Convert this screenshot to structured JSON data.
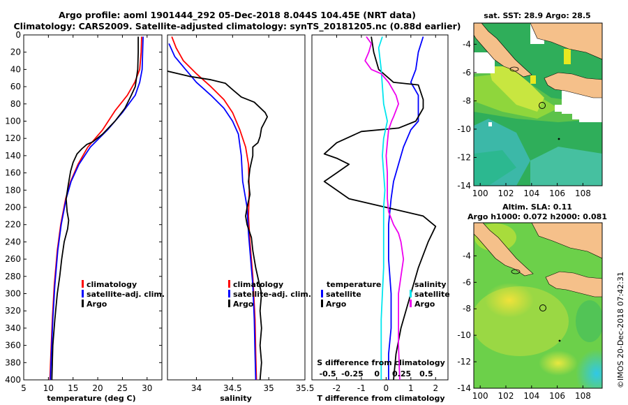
{
  "header": {
    "line1": "Argo profile: aoml 1901444_292 05-Dec-2018 8.044S 104.45E (NRT data)",
    "line2": "Climatology: CARS2009. Satellite-adjusted climatology: synTS_20181205.nc (0.88d earlier)"
  },
  "watermark": "©IMOS 20-Dec-2018 07:42:31",
  "colors": {
    "climatology": "#ff0000",
    "satellite": "#0000ff",
    "argo": "#000000",
    "sat_salinity": "#00e5ee",
    "argo_salinity": "#ee00ee",
    "land": "#f5c08a"
  },
  "chart_data": [
    {
      "type": "line",
      "id": "temperature",
      "xlabel": "temperature (deg C)",
      "ylabel": "",
      "xlim": [
        5,
        33
      ],
      "ylim": [
        400,
        0
      ],
      "xticks": [
        5,
        10,
        15,
        20,
        25,
        30
      ],
      "yticks": [
        0,
        20,
        40,
        60,
        80,
        100,
        120,
        140,
        160,
        180,
        200,
        220,
        240,
        260,
        280,
        300,
        320,
        340,
        360,
        380,
        400
      ],
      "legend": [
        "climatology",
        "satellite-adj. clim.",
        "Argo"
      ],
      "series": [
        {
          "name": "climatology",
          "color": "#ff0000",
          "points": [
            [
              28.9,
              2
            ],
            [
              28.8,
              20
            ],
            [
              28.5,
              40
            ],
            [
              27.5,
              55
            ],
            [
              26,
              70
            ],
            [
              23.5,
              88
            ],
            [
              21,
              110
            ],
            [
              18,
              130
            ],
            [
              16,
              150
            ],
            [
              14.5,
              170
            ],
            [
              13.5,
              190
            ],
            [
              12.5,
              220
            ],
            [
              11.8,
              250
            ],
            [
              11.2,
              290
            ],
            [
              10.8,
              330
            ],
            [
              10.5,
              370
            ],
            [
              10.3,
              400
            ]
          ]
        },
        {
          "name": "satellite-adj. clim.",
          "color": "#0000ff",
          "points": [
            [
              29.2,
              2
            ],
            [
              29.1,
              20
            ],
            [
              29,
              40
            ],
            [
              28.5,
              55
            ],
            [
              27.6,
              70
            ],
            [
              25,
              90
            ],
            [
              22,
              110
            ],
            [
              18.5,
              130
            ],
            [
              16.2,
              150
            ],
            [
              14.6,
              170
            ],
            [
              13.6,
              190
            ],
            [
              12.6,
              220
            ],
            [
              11.9,
              250
            ],
            [
              11.3,
              290
            ],
            [
              10.9,
              330
            ],
            [
              10.6,
              370
            ],
            [
              10.4,
              400
            ]
          ]
        },
        {
          "name": "Argo",
          "color": "#000000",
          "points": [
            [
              28.2,
              2
            ],
            [
              28.2,
              20
            ],
            [
              28.1,
              40
            ],
            [
              27.6,
              60
            ],
            [
              26.8,
              70
            ],
            [
              25.5,
              85
            ],
            [
              23.5,
              100
            ],
            [
              21,
              115
            ],
            [
              19,
              124
            ],
            [
              17.8,
              127
            ],
            [
              16.8,
              132
            ],
            [
              15.8,
              138
            ],
            [
              15,
              148
            ],
            [
              14.5,
              158
            ],
            [
              14,
              175
            ],
            [
              13.6,
              190
            ],
            [
              13.8,
              205
            ],
            [
              14.1,
              215
            ],
            [
              13.9,
              225
            ],
            [
              13.2,
              240
            ],
            [
              12.7,
              260
            ],
            [
              12.3,
              280
            ],
            [
              11.8,
              300
            ],
            [
              11.3,
              330
            ],
            [
              10.9,
              360
            ],
            [
              10.7,
              400
            ]
          ]
        }
      ]
    },
    {
      "type": "line",
      "id": "salinity",
      "xlabel": "salinity",
      "xlim": [
        33.6,
        35.5
      ],
      "ylim": [
        400,
        0
      ],
      "xticks": [
        34,
        34.5,
        35
      ],
      "xticklabels": [
        "34",
        "34.5",
        "35"
      ],
      "extra_ticklabel": "35.5",
      "legend": [
        "climatology",
        "satellite-adj. clim.",
        "Argo"
      ],
      "series": [
        {
          "name": "climatology",
          "color": "#ff0000",
          "points": [
            [
              33.66,
              2
            ],
            [
              33.72,
              15
            ],
            [
              33.82,
              30
            ],
            [
              34,
              45
            ],
            [
              34.2,
              60
            ],
            [
              34.38,
              75
            ],
            [
              34.5,
              90
            ],
            [
              34.6,
              110
            ],
            [
              34.68,
              130
            ],
            [
              34.72,
              150
            ],
            [
              34.73,
              180
            ],
            [
              34.72,
              210
            ],
            [
              34.74,
              240
            ],
            [
              34.78,
              280
            ],
            [
              34.81,
              330
            ],
            [
              34.82,
              370
            ],
            [
              34.83,
              400
            ]
          ]
        },
        {
          "name": "satellite-adj. clim.",
          "color": "#0000ff",
          "points": [
            [
              33.62,
              10
            ],
            [
              33.7,
              25
            ],
            [
              33.85,
              40
            ],
            [
              34,
              55
            ],
            [
              34.2,
              70
            ],
            [
              34.38,
              85
            ],
            [
              34.5,
              100
            ],
            [
              34.58,
              115
            ],
            [
              34.62,
              140
            ],
            [
              34.64,
              170
            ],
            [
              34.7,
              200
            ],
            [
              34.72,
              230
            ],
            [
              34.75,
              260
            ],
            [
              34.78,
              290
            ],
            [
              34.8,
              330
            ],
            [
              34.81,
              370
            ],
            [
              34.82,
              400
            ]
          ]
        },
        {
          "name": "Argo",
          "color": "#000000",
          "points": [
            [
              33.6,
              42
            ],
            [
              33.9,
              48
            ],
            [
              34.2,
              52
            ],
            [
              34.4,
              56
            ],
            [
              34.48,
              62
            ],
            [
              34.62,
              72
            ],
            [
              34.8,
              78
            ],
            [
              34.95,
              90
            ],
            [
              34.98,
              95
            ],
            [
              34.95,
              100
            ],
            [
              34.9,
              108
            ],
            [
              34.88,
              118
            ],
            [
              34.85,
              125
            ],
            [
              34.78,
              130
            ],
            [
              34.78,
              140
            ],
            [
              34.74,
              155
            ],
            [
              34.72,
              170
            ],
            [
              34.74,
              185
            ],
            [
              34.7,
              200
            ],
            [
              34.68,
              210
            ],
            [
              34.7,
              220
            ],
            [
              34.76,
              235
            ],
            [
              34.78,
              250
            ],
            [
              34.82,
              270
            ],
            [
              34.86,
              285
            ],
            [
              34.9,
              300
            ],
            [
              34.88,
              320
            ],
            [
              34.9,
              340
            ],
            [
              34.88,
              360
            ],
            [
              34.9,
              380
            ],
            [
              34.88,
              400
            ]
          ]
        }
      ]
    },
    {
      "type": "line",
      "id": "difference",
      "xlabel": "T difference from climatology",
      "xlabel_top": "S difference from climatology",
      "xlim": [
        -3,
        2.5
      ],
      "ylim": [
        400,
        0
      ],
      "xticks": [
        -2,
        -1,
        0,
        1,
        2
      ],
      "top_xticks": [
        -0.5,
        -0.25,
        0,
        0.25,
        0.5
      ],
      "top_xticklabels": [
        "-0.5",
        "-0.25",
        "0",
        "0.25",
        "0.5"
      ],
      "legend_left_title": "temperature",
      "legend_right_title": "salinity",
      "legend_left": [
        "satellite",
        "Argo"
      ],
      "legend_right": [
        "satellite",
        "Argo"
      ],
      "series": [
        {
          "name": "T satellite",
          "color": "#0000ff",
          "points": [
            [
              1.5,
              2
            ],
            [
              1.3,
              20
            ],
            [
              1.2,
              40
            ],
            [
              1.0,
              55
            ],
            [
              1.3,
              70
            ],
            [
              1.3,
              85
            ],
            [
              1.3,
              100
            ],
            [
              1.0,
              110
            ],
            [
              0.7,
              130
            ],
            [
              0.5,
              150
            ],
            [
              0.3,
              170
            ],
            [
              0.2,
              190
            ],
            [
              0.1,
              220
            ],
            [
              0.1,
              260
            ],
            [
              0.2,
              300
            ],
            [
              0.2,
              340
            ],
            [
              0.1,
              370
            ],
            [
              0.1,
              400
            ]
          ]
        },
        {
          "name": "T Argo",
          "color": "#000000",
          "points": [
            [
              -0.6,
              2
            ],
            [
              -0.5,
              20
            ],
            [
              -0.3,
              40
            ],
            [
              0.3,
              55
            ],
            [
              1.3,
              58
            ],
            [
              1.5,
              75
            ],
            [
              1.5,
              85
            ],
            [
              1.2,
              100
            ],
            [
              0.5,
              108
            ],
            [
              -1,
              112
            ],
            [
              -2,
              125
            ],
            [
              -2.5,
              138
            ],
            [
              -2,
              143
            ],
            [
              -1.5,
              150
            ],
            [
              -2,
              160
            ],
            [
              -2.5,
              170
            ],
            [
              -2,
              180
            ],
            [
              -1.5,
              190
            ],
            [
              0,
              200
            ],
            [
              1.5,
              210
            ],
            [
              2,
              222
            ],
            [
              1.7,
              240
            ],
            [
              1.3,
              270
            ],
            [
              1.0,
              300
            ],
            [
              0.6,
              340
            ],
            [
              0.4,
              370
            ],
            [
              0.3,
              400
            ]
          ]
        },
        {
          "name": "S satellite",
          "color": "#00e5ee",
          "points": [
            [
              -0.15,
              2
            ],
            [
              -0.3,
              15
            ],
            [
              -0.2,
              40
            ],
            [
              -0.1,
              80
            ],
            [
              0.05,
              100
            ],
            [
              -0.1,
              120
            ],
            [
              -0.15,
              140
            ],
            [
              -0.1,
              160
            ],
            [
              -0.05,
              180
            ],
            [
              -0.1,
              200
            ],
            [
              -0.1,
              240
            ],
            [
              -0.1,
              270
            ],
            [
              -0.15,
              300
            ],
            [
              -0.2,
              330
            ],
            [
              -0.2,
              360
            ],
            [
              -0.2,
              400
            ]
          ]
        },
        {
          "name": "S Argo",
          "color": "#ee00ee",
          "points": [
            [
              -0.8,
              2
            ],
            [
              -0.6,
              10
            ],
            [
              -0.7,
              20
            ],
            [
              -0.85,
              30
            ],
            [
              -0.6,
              40
            ],
            [
              -0.2,
              45
            ],
            [
              0.1,
              55
            ],
            [
              0.4,
              70
            ],
            [
              0.5,
              80
            ],
            [
              0.3,
              95
            ],
            [
              0.22,
              100
            ],
            [
              0.1,
              110
            ],
            [
              0.05,
              125
            ],
            [
              0.0,
              140
            ],
            [
              0.05,
              160
            ],
            [
              0.05,
              190
            ],
            [
              0.1,
              205
            ],
            [
              0.3,
              220
            ],
            [
              0.5,
              230
            ],
            [
              0.6,
              240
            ],
            [
              0.7,
              260
            ],
            [
              0.6,
              280
            ],
            [
              0.5,
              300
            ],
            [
              0.5,
              330
            ],
            [
              0.5,
              360
            ],
            [
              0.55,
              400
            ]
          ]
        }
      ]
    },
    {
      "type": "heatmap",
      "id": "sst_map",
      "title": "sat. SST: 28.9 Argo: 28.5",
      "xlim": [
        99.5,
        109.5
      ],
      "ylim": [
        -14,
        -2.5
      ],
      "xticks": [
        100,
        102,
        104,
        106,
        108
      ],
      "yticks": [
        -4,
        -6,
        -8,
        -10,
        -12,
        -14
      ],
      "argo_position": [
        104.45,
        -8.044
      ]
    },
    {
      "type": "heatmap",
      "id": "sla_map",
      "title": "Altim. SLA: 0.11",
      "subtitle": "Argo h1000: 0.072 h2000: 0.081",
      "xlim": [
        99.5,
        109.5
      ],
      "ylim": [
        -14,
        -1.5
      ],
      "xticks": [
        100,
        102,
        104,
        106,
        108
      ],
      "yticks": [
        -4,
        -6,
        -8,
        -10,
        -12,
        -14
      ],
      "argo_position": [
        104.45,
        -8.044
      ]
    }
  ]
}
